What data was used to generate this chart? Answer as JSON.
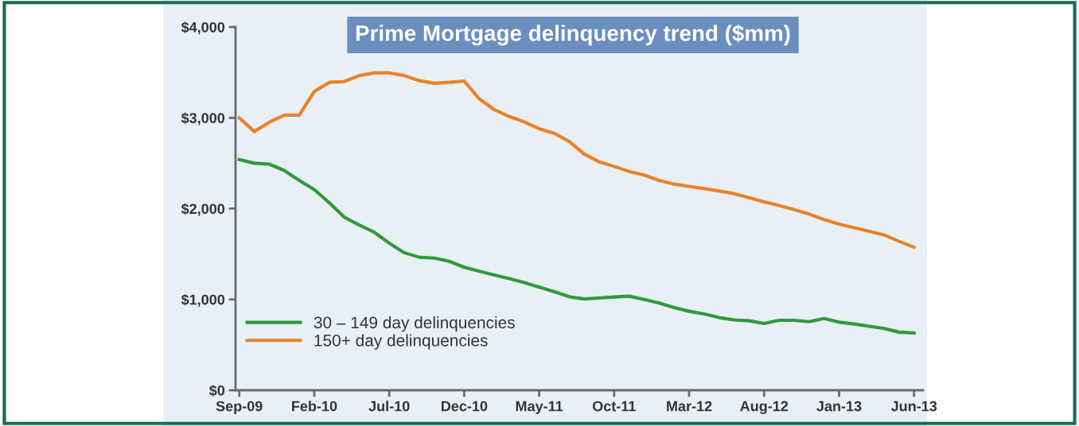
{
  "chart_data": {
    "type": "line",
    "title": "Prime Mortgage delinquency trend ($mm)",
    "categories": [
      "Sep-09",
      null,
      null,
      null,
      null,
      "Feb-10",
      null,
      null,
      null,
      null,
      "Jul-10",
      null,
      null,
      null,
      null,
      "Dec-10",
      null,
      null,
      null,
      null,
      "May-11",
      null,
      null,
      null,
      null,
      "Oct-11",
      null,
      null,
      null,
      null,
      "Mar-12",
      null,
      null,
      null,
      null,
      "Aug-12",
      null,
      null,
      null,
      null,
      "Jan-13",
      null,
      null,
      null,
      null,
      "Jun-13"
    ],
    "series": [
      {
        "name": "30 – 149 day delinquencies",
        "color": "#2f9a3c",
        "values": [
          2540,
          2500,
          2490,
          2420,
          2310,
          2210,
          2065,
          1906,
          1820,
          1740,
          1620,
          1515,
          1465,
          1455,
          1420,
          1355,
          1310,
          1270,
          1230,
          1185,
          1135,
          1085,
          1030,
          1005,
          1015,
          1028,
          1036,
          1000,
          960,
          910,
          870,
          840,
          800,
          775,
          765,
          735,
          770,
          770,
          755,
          790,
          750,
          730,
          705,
          680,
          640,
          630
        ]
      },
      {
        "name": "150+ day delinquencies",
        "color": "#e8822a",
        "values": [
          3000,
          2850,
          2950,
          3030,
          3030,
          3290,
          3390,
          3400,
          3465,
          3495,
          3495,
          3465,
          3410,
          3380,
          3390,
          3405,
          3210,
          3090,
          3015,
          2956,
          2880,
          2830,
          2740,
          2600,
          2515,
          2465,
          2410,
          2370,
          2310,
          2270,
          2245,
          2220,
          2195,
          2165,
          2120,
          2075,
          2035,
          1990,
          1940,
          1880,
          1830,
          1790,
          1750,
          1710,
          1640,
          1575
        ]
      }
    ],
    "ylim": [
      0,
      4000
    ],
    "yticks": [
      {
        "value": 0,
        "label": "$0"
      },
      {
        "value": 1000,
        "label": "$1,000"
      },
      {
        "value": 2000,
        "label": "$2,000"
      },
      {
        "value": 3000,
        "label": "$3,000"
      },
      {
        "value": 4000,
        "label": "$4,000"
      }
    ],
    "grid": false,
    "legend": "bottom left",
    "marker": "none",
    "line_style": "solid"
  }
}
